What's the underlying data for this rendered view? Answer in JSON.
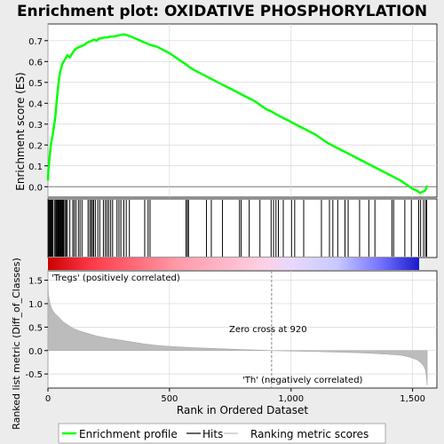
{
  "title": "Enrichment plot: OXIDATIVE PHOSPHORYLATION",
  "colors": {
    "es_line": "#00ff00",
    "hits": "#000000",
    "metric_fill": "#bcbcbc",
    "zero_cross_line": "#888888",
    "pos_label": "#cc0000",
    "neg_label": "#0000cc"
  },
  "annotations": {
    "pos_label": "'Tregs' (positively correlated)",
    "neg_label": "'Th' (negatively correlated)",
    "zero_cross": "Zero cross at 920"
  },
  "legend": {
    "enrichment": "Enrichment profile",
    "hits": "Hits",
    "ranking": "Ranking metric scores"
  },
  "chart_data": {
    "type": "line",
    "title": "Enrichment plot: OXIDATIVE PHOSPHORYLATION",
    "xlabel": "Rank in Ordered Dataset",
    "xlim": [
      0,
      1600
    ],
    "xticks": [
      0,
      500,
      1000,
      1500
    ],
    "xtick_labels": [
      "0",
      "500",
      "1,000",
      "1,500"
    ],
    "zero_cross": 920,
    "es_panel": {
      "ylabel": "Enrichment score (ES)",
      "ylim": [
        -0.05,
        0.78
      ],
      "yticks": [
        0.0,
        0.1,
        0.2,
        0.3,
        0.4,
        0.5,
        0.6,
        0.7
      ],
      "ytick_labels": [
        "0.0",
        "0.1",
        "0.2",
        "0.3",
        "0.4",
        "0.5",
        "0.6",
        "0.7"
      ],
      "grid": true,
      "series": [
        {
          "name": "Enrichment profile",
          "x": [
            0,
            2,
            5,
            8,
            12,
            16,
            20,
            25,
            30,
            35,
            40,
            45,
            50,
            55,
            60,
            65,
            70,
            75,
            80,
            85,
            90,
            95,
            100,
            110,
            120,
            130,
            140,
            150,
            160,
            170,
            180,
            190,
            200,
            210,
            220,
            230,
            240,
            250,
            260,
            270,
            280,
            290,
            300,
            310,
            320,
            340,
            360,
            380,
            400,
            420,
            450,
            500,
            550,
            570,
            580,
            600,
            650,
            700,
            750,
            800,
            850,
            900,
            920,
            950,
            1000,
            1050,
            1100,
            1150,
            1200,
            1250,
            1300,
            1350,
            1400,
            1450,
            1500,
            1520,
            1530,
            1540,
            1550,
            1555,
            1558,
            1560
          ],
          "values": [
            0.03,
            0.08,
            0.12,
            0.16,
            0.2,
            0.23,
            0.25,
            0.29,
            0.33,
            0.4,
            0.46,
            0.51,
            0.55,
            0.57,
            0.59,
            0.6,
            0.61,
            0.62,
            0.63,
            0.625,
            0.62,
            0.63,
            0.64,
            0.655,
            0.665,
            0.67,
            0.675,
            0.68,
            0.69,
            0.695,
            0.7,
            0.705,
            0.7,
            0.71,
            0.712,
            0.715,
            0.715,
            0.718,
            0.72,
            0.72,
            0.722,
            0.725,
            0.728,
            0.73,
            0.728,
            0.72,
            0.71,
            0.7,
            0.69,
            0.68,
            0.67,
            0.64,
            0.6,
            0.585,
            0.575,
            0.56,
            0.53,
            0.5,
            0.47,
            0.44,
            0.41,
            0.37,
            0.36,
            0.34,
            0.31,
            0.28,
            0.25,
            0.21,
            0.18,
            0.15,
            0.12,
            0.09,
            0.06,
            0.03,
            -0.01,
            -0.02,
            -0.03,
            -0.025,
            -0.02,
            -0.01,
            0.0,
            0.005
          ]
        }
      ]
    },
    "hits_panel": {
      "hit_ranks": [
        3,
        6,
        9,
        12,
        15,
        18,
        21,
        28,
        32,
        35,
        38,
        41,
        44,
        47,
        50,
        53,
        56,
        59,
        62,
        65,
        70,
        75,
        80,
        90,
        102,
        108,
        115,
        125,
        132,
        140,
        165,
        172,
        178,
        183,
        188,
        195,
        205,
        213,
        228,
        236,
        243,
        250,
        258,
        266,
        284,
        292,
        300,
        312,
        322,
        335,
        398,
        412,
        420,
        568,
        574,
        578,
        652,
        672,
        718,
        788,
        795,
        828,
        872,
        918,
        928,
        938,
        948,
        968,
        1002,
        1015,
        1052,
        1125,
        1158,
        1172,
        1192,
        1222,
        1235,
        1282,
        1320,
        1345,
        1415,
        1422,
        1468,
        1495,
        1525,
        1533,
        1545,
        1553,
        1558
      ]
    },
    "metric_panel": {
      "ylabel": "Ranked list metric (Diff_of_Classes)",
      "ylim": [
        -0.8,
        1.7
      ],
      "yticks": [
        -0.5,
        0.0,
        0.5,
        1.0,
        1.5
      ],
      "ytick_labels": [
        "-0.5",
        "0.0",
        "0.5",
        "1.0",
        "1.5"
      ],
      "grid": true,
      "x": [
        0,
        2,
        5,
        10,
        15,
        20,
        30,
        40,
        50,
        60,
        80,
        100,
        130,
        160,
        200,
        250,
        300,
        350,
        400,
        450,
        500,
        600,
        700,
        800,
        900,
        920,
        1000,
        1100,
        1200,
        1300,
        1400,
        1450,
        1480,
        1500,
        1520,
        1535,
        1545,
        1552,
        1557,
        1560
      ],
      "values": [
        1.6,
        1.2,
        1.1,
        0.98,
        0.9,
        0.85,
        0.78,
        0.73,
        0.68,
        0.62,
        0.55,
        0.48,
        0.42,
        0.37,
        0.31,
        0.26,
        0.22,
        0.18,
        0.14,
        0.11,
        0.09,
        0.06,
        0.04,
        0.02,
        0.005,
        0.0,
        -0.01,
        -0.02,
        -0.035,
        -0.05,
        -0.08,
        -0.1,
        -0.13,
        -0.16,
        -0.2,
        -0.26,
        -0.32,
        -0.4,
        -0.55,
        -0.75
      ]
    }
  }
}
